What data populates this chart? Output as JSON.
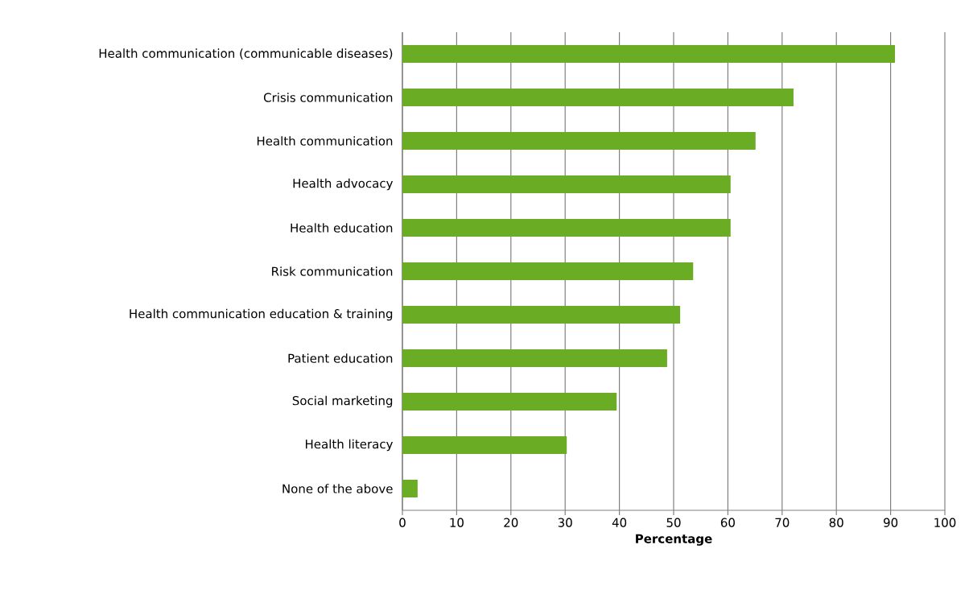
{
  "chart_data": {
    "type": "bar",
    "orientation": "horizontal",
    "xlabel": "Percentage",
    "categories": [
      "Health communication (communicable diseases)",
      "Crisis communication",
      "Health communication",
      "Health advocacy",
      "Health education",
      "Risk communication",
      "Health communication education & training",
      "Patient education",
      "Social marketing",
      "Health literacy",
      "None of the above"
    ],
    "values": [
      90.8,
      72.1,
      65.1,
      60.5,
      60.5,
      53.6,
      51.2,
      48.8,
      39.5,
      30.3,
      2.8
    ],
    "color": "#6aac24",
    "xlim": [
      0,
      100
    ],
    "xticks": [
      0,
      10,
      20,
      30,
      40,
      50,
      60,
      70,
      80,
      90,
      100
    ],
    "grid": "x"
  }
}
